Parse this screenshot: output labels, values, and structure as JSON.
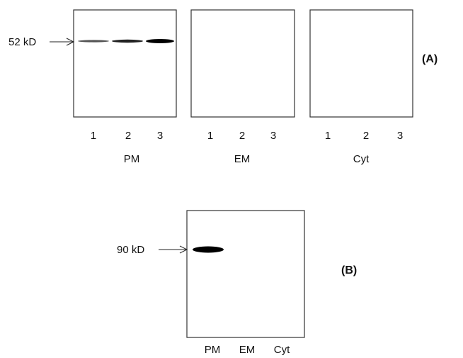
{
  "panel_a": {
    "label": "(A)",
    "marker": "52 kD",
    "blots": [
      {
        "name": "PM",
        "lanes": [
          "1",
          "2",
          "3"
        ]
      },
      {
        "name": "EM",
        "lanes": [
          "1",
          "2",
          "3"
        ]
      },
      {
        "name": "Cyt",
        "lanes": [
          "1",
          "2",
          "3"
        ]
      }
    ]
  },
  "panel_b": {
    "label": "(B)",
    "marker": "90 kD",
    "lanes": [
      "PM",
      "EM",
      "Cyt"
    ]
  }
}
